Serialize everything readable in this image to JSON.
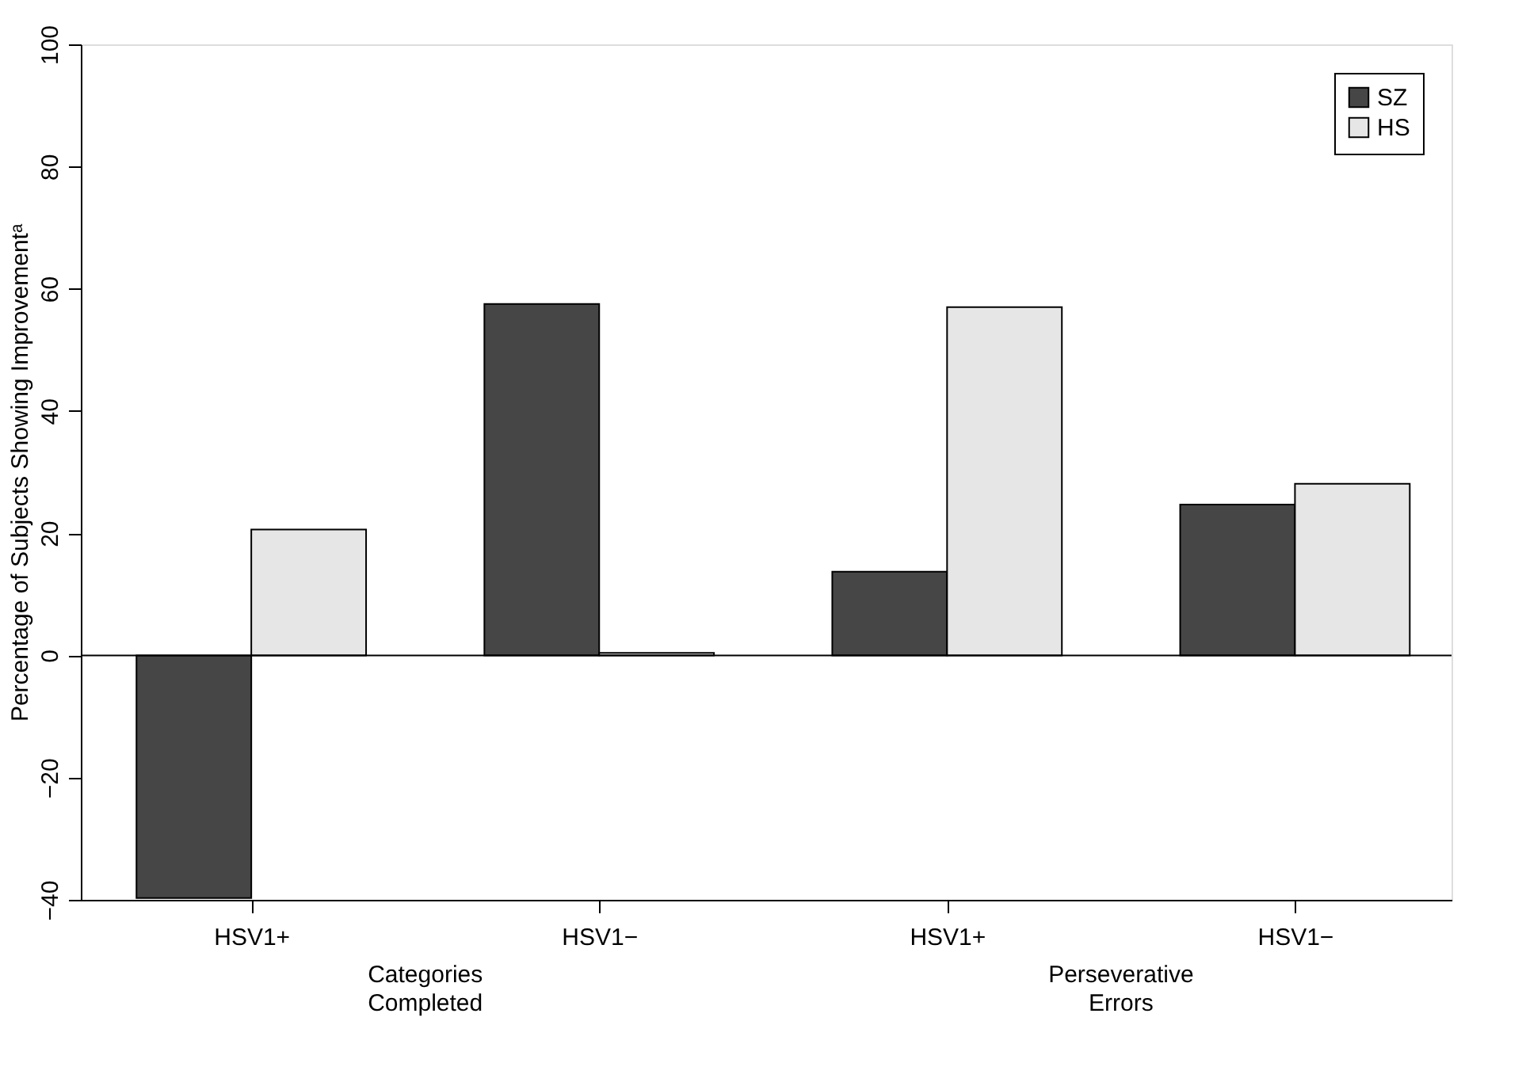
{
  "chart_data": {
    "type": "bar",
    "ylabel": "Percentage of Subjects Showing Improvementᵃ",
    "categories": [
      "HSV1+",
      "HSV1−",
      "HSV1+",
      "HSV1−"
    ],
    "series": [
      {
        "name": "SZ",
        "color": "#464646",
        "values": [
          -39.7,
          57.5,
          13.7,
          24.7
        ]
      },
      {
        "name": "HS",
        "color": "#e6e6e6",
        "values": [
          20.6,
          0.4,
          57.0,
          28.1
        ]
      }
    ],
    "ylim": [
      -40,
      100
    ],
    "yticks": [
      -40,
      -20,
      0,
      20,
      40,
      60,
      80,
      100
    ],
    "ref_lines": [
      {
        "axis": "y",
        "value": 0,
        "color": "#000000"
      }
    ],
    "annotations": [
      "Categories Completed",
      "Perseverative Errors"
    ],
    "grid": false,
    "legend": "top right"
  }
}
